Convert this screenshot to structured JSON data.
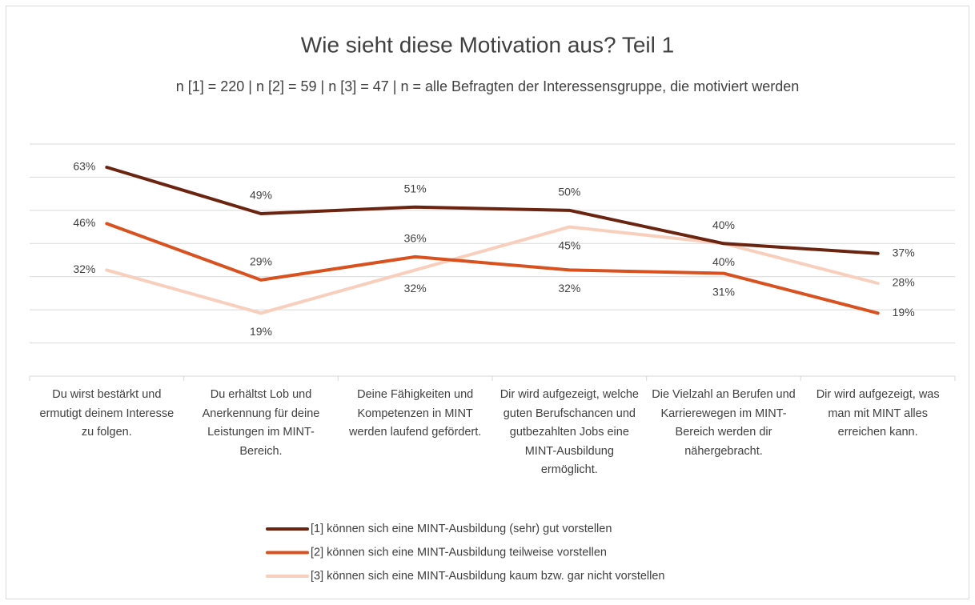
{
  "chart_data": {
    "type": "line",
    "title": "Wie sieht diese Motivation aus? Teil 1",
    "subtitle": "n [1] = 220 | n [2] = 59 | n [3] = 47 | n = alle Befragten der Interessensgruppe, die motiviert werden",
    "categories": [
      "Du wirst bestärkt und ermutigt deinem Interesse zu folgen.",
      "Du erhältst Lob und Anerkennung für deine Leistungen im MINT-Bereich.",
      "Deine Fähigkeiten und Kompetenzen in MINT werden laufend gefördert.",
      "Dir wird aufgezeigt, welche guten Berufschancen und gutbezahlten Jobs eine MINT-Ausbildung ermöglicht.",
      "Die Vielzahl an Berufen und Karrierewegen im MINT-Bereich werden dir nähergebracht.",
      "Dir wird aufgezeigt, was man mit MINT alles erreichen kann."
    ],
    "series": [
      {
        "name": "[1] können sich eine MINT-Ausbildung (sehr) gut vorstellen",
        "color": "#6b2410",
        "values": [
          63,
          49,
          51,
          50,
          40,
          37
        ],
        "value_labels": [
          "63%",
          "49%",
          "51%",
          "50%",
          "40%",
          "37%"
        ]
      },
      {
        "name": "[2] können sich eine MINT-Ausbildung teilweise vorstellen",
        "color": "#d9511f",
        "values": [
          46,
          29,
          36,
          32,
          31,
          19
        ],
        "value_labels": [
          "46%",
          "29%",
          "36%",
          "32%",
          "31%",
          "19%"
        ]
      },
      {
        "name": "[3] können sich eine MINT-Ausbildung kaum bzw. gar nicht vorstellen",
        "color": "#f8cfbd",
        "values": [
          32,
          19,
          32,
          45,
          40,
          28
        ],
        "value_labels": [
          "32%",
          "19%",
          "32%",
          "45%",
          "40%",
          "28%"
        ]
      }
    ],
    "ylim": [
      0,
      70
    ],
    "yticks": [
      0,
      10,
      20,
      30,
      40,
      50,
      60,
      70
    ],
    "grid": true
  }
}
